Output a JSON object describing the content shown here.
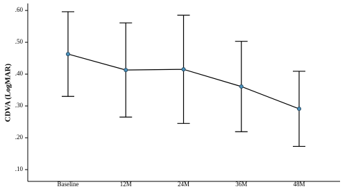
{
  "chart_data": {
    "type": "line",
    "y_label": "CDVA (LogMAR)",
    "categories": [
      "Baseline",
      "12M",
      "24M",
      "36M",
      "48M"
    ],
    "values": [
      0.463,
      0.413,
      0.415,
      0.361,
      0.291
    ],
    "errors": [
      0.133,
      0.148,
      0.17,
      0.142,
      0.118
    ],
    "color": "#000000",
    "marker_color": "#4a90b8",
    "ylim": [
      0.063,
      0.622
    ],
    "yticks": [
      {
        "value": 0.1,
        "label": ".10"
      },
      {
        "value": 0.2,
        "label": ".20"
      },
      {
        "value": 0.3,
        "label": ".30"
      },
      {
        "value": 0.4,
        "label": ".40"
      },
      {
        "value": 0.5,
        "label": ".50"
      },
      {
        "value": 0.6,
        "label": ".60"
      }
    ],
    "grid": false
  }
}
